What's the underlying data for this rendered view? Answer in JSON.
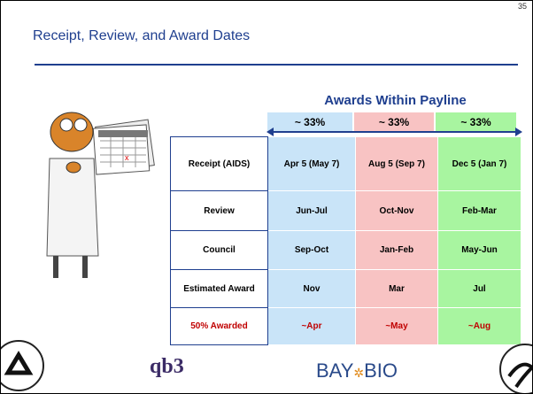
{
  "header": {
    "title": "Receipt, Review, and Award Dates",
    "page_number": "35"
  },
  "table": {
    "caption": "Awards Within Payline",
    "shares": [
      "~ 33%",
      "~ 33%",
      "~ 33%"
    ],
    "rows": [
      [
        "Receipt (AIDS)",
        "Apr 5 (May 7)",
        "Aug 5 (Sep 7)",
        "Dec 5  (Jan 7)"
      ],
      [
        "Review",
        "Jun-Jul",
        "Oct-Nov",
        "Feb-Mar"
      ],
      [
        "Council",
        "Sep-Oct",
        "Jan-Feb",
        "May-Jun"
      ],
      [
        "Estimated Award",
        "Nov",
        "Mar",
        "Jul"
      ],
      [
        "50% Awarded",
        "~Apr",
        "~May",
        "~Aug"
      ]
    ]
  },
  "logos": {
    "qb3": "qb3",
    "baybio_left": "BAY",
    "baybio_right": "BIO"
  }
}
